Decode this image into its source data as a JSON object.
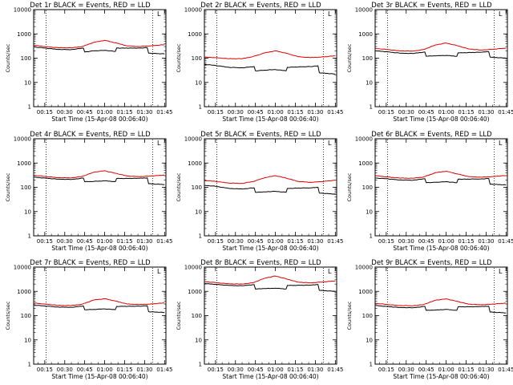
{
  "colors": {
    "events": "#000000",
    "lld": "#e00000",
    "background": "#ffffff"
  },
  "chart_data": [
    {
      "type": "line",
      "title": "Det 1r BLACK = Events, RED = LLD",
      "xlabel": "Start Time (15-Apr-08 00:06:40)",
      "ylabel": "Counts/sec",
      "yscale": "log",
      "ylim": [
        1,
        10000
      ],
      "x_ticks": [
        "00:15",
        "00:30",
        "00:45",
        "01:00",
        "01:15",
        "01:30",
        "01:45"
      ],
      "y_ticks": [
        "1",
        "10",
        "100",
        "1000",
        "10000"
      ],
      "corner_tag": "L",
      "series": [
        {
          "name": "LLD",
          "color": "#e00000",
          "x": [
            "00:07",
            "00:15",
            "00:25",
            "00:35",
            "00:43",
            "00:52",
            "01:00",
            "01:08",
            "01:17",
            "01:26",
            "01:34",
            "01:45"
          ],
          "values": [
            340,
            300,
            270,
            265,
            300,
            450,
            540,
            430,
            320,
            300,
            320,
            360
          ]
        },
        {
          "name": "Events",
          "color": "#000000",
          "x": [
            "00:07",
            "00:15",
            "00:25",
            "00:35",
            "00:44",
            "00:45",
            "00:52",
            "01:00",
            "01:08",
            "01:09",
            "01:26",
            "01:32",
            "01:33",
            "01:45"
          ],
          "values": [
            290,
            260,
            230,
            225,
            260,
            180,
            200,
            210,
            190,
            260,
            260,
            270,
            160,
            150
          ]
        }
      ]
    },
    {
      "type": "line",
      "title": "Det 2r BLACK = Events, RED = LLD",
      "xlabel": "Start Time (15-Apr-08 00:06:40)",
      "ylabel": "Counts/sec",
      "yscale": "log",
      "ylim": [
        1,
        10000
      ],
      "x_ticks": [
        "00:15",
        "00:30",
        "00:45",
        "01:00",
        "01:15",
        "01:30",
        "01:45"
      ],
      "y_ticks": [
        "1",
        "10",
        "100",
        "1000",
        "10000"
      ],
      "corner_tag": "L",
      "series": [
        {
          "name": "LLD",
          "color": "#e00000",
          "x": [
            "00:07",
            "00:15",
            "00:25",
            "00:35",
            "00:43",
            "00:52",
            "01:00",
            "01:08",
            "01:17",
            "01:26",
            "01:34",
            "01:45"
          ],
          "values": [
            110,
            105,
            95,
            95,
            115,
            165,
            200,
            160,
            115,
            105,
            110,
            125
          ]
        },
        {
          "name": "Events",
          "color": "#000000",
          "x": [
            "00:07",
            "00:15",
            "00:25",
            "00:35",
            "00:44",
            "00:45",
            "00:52",
            "01:00",
            "01:08",
            "01:09",
            "01:26",
            "01:32",
            "01:33",
            "01:45"
          ],
          "values": [
            55,
            50,
            42,
            40,
            45,
            30,
            32,
            34,
            30,
            42,
            45,
            48,
            25,
            22
          ]
        }
      ]
    },
    {
      "type": "line",
      "title": "Det 3r BLACK = Events, RED = LLD",
      "xlabel": "Start Time (15-Apr-08 00:06:40)",
      "ylabel": "Counts/sec",
      "yscale": "log",
      "ylim": [
        1,
        10000
      ],
      "x_ticks": [
        "00:15",
        "00:30",
        "00:45",
        "01:00",
        "01:15",
        "01:30",
        "01:45"
      ],
      "y_ticks": [
        "1",
        "10",
        "100",
        "1000",
        "10000"
      ],
      "corner_tag": "L",
      "series": [
        {
          "name": "LLD",
          "color": "#e00000",
          "x": [
            "00:07",
            "00:15",
            "00:25",
            "00:35",
            "00:43",
            "00:52",
            "01:00",
            "01:08",
            "01:17",
            "01:26",
            "01:34",
            "01:45"
          ],
          "values": [
            250,
            230,
            200,
            195,
            225,
            350,
            420,
            330,
            240,
            215,
            230,
            260
          ]
        },
        {
          "name": "Events",
          "color": "#000000",
          "x": [
            "00:07",
            "00:15",
            "00:25",
            "00:35",
            "00:44",
            "00:45",
            "00:52",
            "01:00",
            "01:08",
            "01:09",
            "01:26",
            "01:32",
            "01:33",
            "01:45"
          ],
          "values": [
            200,
            185,
            160,
            155,
            180,
            120,
            125,
            130,
            120,
            165,
            175,
            185,
            110,
            100
          ]
        }
      ]
    },
    {
      "type": "line",
      "title": "Det 4r BLACK = Events, RED = LLD",
      "xlabel": "Start Time (15-Apr-08 00:06:40)",
      "ylabel": "Counts/sec",
      "yscale": "log",
      "ylim": [
        1,
        10000
      ],
      "x_ticks": [
        "00:15",
        "00:30",
        "00:45",
        "01:00",
        "01:15",
        "01:30",
        "01:45"
      ],
      "y_ticks": [
        "1",
        "10",
        "100",
        "1000",
        "10000"
      ],
      "corner_tag": "L",
      "series": [
        {
          "name": "LLD",
          "color": "#e00000",
          "x": [
            "00:07",
            "00:15",
            "00:25",
            "00:35",
            "00:43",
            "00:52",
            "01:00",
            "01:08",
            "01:17",
            "01:26",
            "01:34",
            "01:45"
          ],
          "values": [
            310,
            280,
            250,
            245,
            280,
            420,
            480,
            380,
            290,
            275,
            290,
            320
          ]
        },
        {
          "name": "Events",
          "color": "#000000",
          "x": [
            "00:07",
            "00:15",
            "00:25",
            "00:35",
            "00:44",
            "00:45",
            "00:52",
            "01:00",
            "01:08",
            "01:09",
            "01:26",
            "01:32",
            "01:33",
            "01:45"
          ],
          "values": [
            260,
            240,
            215,
            210,
            240,
            170,
            175,
            185,
            170,
            230,
            235,
            245,
            140,
            130
          ]
        }
      ]
    },
    {
      "type": "line",
      "title": "Det 5r BLACK = Events, RED = LLD",
      "xlabel": "Start Time (15-Apr-08 00:06:40)",
      "ylabel": "Counts/sec",
      "yscale": "log",
      "ylim": [
        1,
        10000
      ],
      "x_ticks": [
        "00:15",
        "00:30",
        "00:45",
        "01:00",
        "01:15",
        "01:30",
        "01:45"
      ],
      "y_ticks": [
        "1",
        "10",
        "100",
        "1000",
        "10000"
      ],
      "corner_tag": "L",
      "series": [
        {
          "name": "LLD",
          "color": "#e00000",
          "x": [
            "00:07",
            "00:15",
            "00:25",
            "00:35",
            "00:43",
            "00:52",
            "01:00",
            "01:08",
            "01:17",
            "01:26",
            "01:34",
            "01:45"
          ],
          "values": [
            190,
            175,
            150,
            145,
            170,
            250,
            300,
            240,
            175,
            160,
            170,
            195
          ]
        },
        {
          "name": "Events",
          "color": "#000000",
          "x": [
            "00:07",
            "00:15",
            "00:25",
            "00:35",
            "00:44",
            "00:45",
            "00:52",
            "01:00",
            "01:08",
            "01:09",
            "01:26",
            "01:32",
            "01:33",
            "01:45"
          ],
          "values": [
            120,
            110,
            90,
            85,
            95,
            62,
            65,
            68,
            62,
            90,
            95,
            100,
            58,
            52
          ]
        }
      ]
    },
    {
      "type": "line",
      "title": "Det 6r BLACK = Events, RED = LLD",
      "xlabel": "Start Time (15-Apr-08 00:06:40)",
      "ylabel": "Counts/sec",
      "yscale": "log",
      "ylim": [
        1,
        10000
      ],
      "x_ticks": [
        "00:15",
        "00:30",
        "00:45",
        "01:00",
        "01:15",
        "01:30",
        "01:45"
      ],
      "y_ticks": [
        "1",
        "10",
        "100",
        "1000",
        "10000"
      ],
      "corner_tag": "L",
      "series": [
        {
          "name": "LLD",
          "color": "#e00000",
          "x": [
            "00:07",
            "00:15",
            "00:25",
            "00:35",
            "00:43",
            "00:52",
            "01:00",
            "01:08",
            "01:17",
            "01:26",
            "01:34",
            "01:45"
          ],
          "values": [
            300,
            270,
            240,
            235,
            265,
            400,
            460,
            360,
            275,
            260,
            275,
            305
          ]
        },
        {
          "name": "Events",
          "color": "#000000",
          "x": [
            "00:07",
            "00:15",
            "00:25",
            "00:35",
            "00:44",
            "00:45",
            "00:52",
            "01:00",
            "01:08",
            "01:09",
            "01:26",
            "01:32",
            "01:33",
            "01:45"
          ],
          "values": [
            240,
            225,
            200,
            195,
            225,
            155,
            160,
            170,
            155,
            215,
            220,
            230,
            135,
            125
          ]
        }
      ]
    },
    {
      "type": "line",
      "title": "Det 7r BLACK = Events, RED = LLD",
      "xlabel": "Start Time (15-Apr-08 00:06:40)",
      "ylabel": "Counts/sec",
      "yscale": "log",
      "ylim": [
        1,
        10000
      ],
      "x_ticks": [
        "00:15",
        "00:30",
        "00:45",
        "01:00",
        "01:15",
        "01:30",
        "01:45"
      ],
      "y_ticks": [
        "1",
        "10",
        "100",
        "1000",
        "10000"
      ],
      "corner_tag": "L",
      "series": [
        {
          "name": "LLD",
          "color": "#e00000",
          "x": [
            "00:07",
            "00:15",
            "00:25",
            "00:35",
            "00:43",
            "00:52",
            "01:00",
            "01:08",
            "01:17",
            "01:26",
            "01:34",
            "01:45"
          ],
          "values": [
            330,
            300,
            265,
            260,
            295,
            440,
            500,
            400,
            300,
            285,
            300,
            335
          ]
        },
        {
          "name": "Events",
          "color": "#000000",
          "x": [
            "00:07",
            "00:15",
            "00:25",
            "00:35",
            "00:44",
            "00:45",
            "00:52",
            "01:00",
            "01:08",
            "01:09",
            "01:26",
            "01:32",
            "01:33",
            "01:45"
          ],
          "values": [
            270,
            250,
            225,
            220,
            250,
            175,
            180,
            190,
            175,
            240,
            245,
            255,
            145,
            135
          ]
        }
      ]
    },
    {
      "type": "line",
      "title": "Det 8r BLACK = Events, RED = LLD",
      "xlabel": "Start Time (15-Apr-08 00:06:40)",
      "ylabel": "Counts/sec",
      "yscale": "log",
      "ylim": [
        1,
        10000
      ],
      "x_ticks": [
        "00:15",
        "00:30",
        "00:45",
        "01:00",
        "01:15",
        "01:30",
        "01:45"
      ],
      "y_ticks": [
        "1",
        "10",
        "100",
        "1000",
        "10000"
      ],
      "corner_tag": "L",
      "series": [
        {
          "name": "LLD",
          "color": "#e00000",
          "x": [
            "00:07",
            "00:15",
            "00:25",
            "00:35",
            "00:43",
            "00:52",
            "01:00",
            "01:08",
            "01:17",
            "01:26",
            "01:34",
            "01:45"
          ],
          "values": [
            2500,
            2300,
            2050,
            2000,
            2250,
            3500,
            4300,
            3300,
            2400,
            2250,
            2400,
            2700
          ]
        },
        {
          "name": "Events",
          "color": "#000000",
          "x": [
            "00:07",
            "00:15",
            "00:25",
            "00:35",
            "00:44",
            "00:45",
            "00:52",
            "01:00",
            "01:08",
            "01:09",
            "01:26",
            "01:32",
            "01:33",
            "01:45"
          ],
          "values": [
            2100,
            1950,
            1750,
            1700,
            1900,
            1250,
            1300,
            1350,
            1250,
            1750,
            1800,
            1900,
            1100,
            1000
          ]
        }
      ]
    },
    {
      "type": "line",
      "title": "Det 9r BLACK = Events, RED = LLD",
      "xlabel": "Start Time (15-Apr-08 00:06:40)",
      "ylabel": "Counts/sec",
      "yscale": "log",
      "ylim": [
        1,
        10000
      ],
      "x_ticks": [
        "00:15",
        "00:30",
        "00:45",
        "01:00",
        "01:15",
        "01:30",
        "01:45"
      ],
      "y_ticks": [
        "1",
        "10",
        "100",
        "1000",
        "10000"
      ],
      "corner_tag": "L",
      "series": [
        {
          "name": "LLD",
          "color": "#e00000",
          "x": [
            "00:07",
            "00:15",
            "00:25",
            "00:35",
            "00:43",
            "00:52",
            "01:00",
            "01:08",
            "01:17",
            "01:26",
            "01:34",
            "01:45"
          ],
          "values": [
            320,
            290,
            260,
            255,
            285,
            430,
            490,
            390,
            295,
            280,
            295,
            330
          ]
        },
        {
          "name": "Events",
          "color": "#000000",
          "x": [
            "00:07",
            "00:15",
            "00:25",
            "00:35",
            "00:44",
            "00:45",
            "00:52",
            "01:00",
            "01:08",
            "01:09",
            "01:26",
            "01:32",
            "01:33",
            "01:45"
          ],
          "values": [
            260,
            240,
            215,
            210,
            240,
            165,
            170,
            180,
            165,
            230,
            235,
            245,
            140,
            130
          ]
        }
      ]
    }
  ]
}
